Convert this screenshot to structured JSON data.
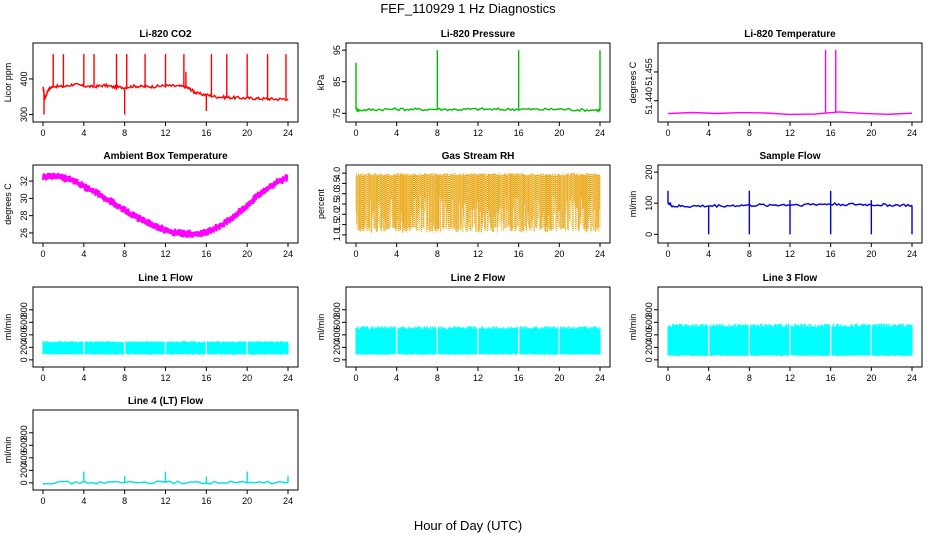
{
  "figure": {
    "title": "FEF_110929  1 Hz Diagnostics",
    "xlabel": "Hour of Day (UTC)"
  },
  "chart_data": [
    {
      "type": "line",
      "title": "Li-820 CO2",
      "ylabel": "Licor ppm",
      "color": "#ff0000",
      "xlim": [
        0,
        24
      ],
      "xticks": [
        0,
        4,
        8,
        12,
        16,
        20,
        24
      ],
      "ylim": [
        290,
        490
      ],
      "yticks": [
        300,
        400
      ],
      "x": [
        0,
        0.2,
        0.5,
        1,
        2,
        3,
        4,
        5,
        6,
        7,
        8,
        9,
        10,
        11,
        12,
        13,
        14,
        14.5,
        15,
        16,
        17,
        18,
        19,
        20,
        21,
        22,
        23,
        24
      ],
      "y": [
        375,
        345,
        370,
        380,
        378,
        385,
        380,
        378,
        382,
        377,
        376,
        380,
        378,
        379,
        381,
        380,
        378,
        370,
        360,
        355,
        350,
        348,
        347,
        346,
        345,
        344,
        343,
        344
      ],
      "spikes": [
        {
          "x": 0.1,
          "y": 300
        },
        {
          "x": 1,
          "y": 470
        },
        {
          "x": 2,
          "y": 470
        },
        {
          "x": 4,
          "y": 470
        },
        {
          "x": 5,
          "y": 470
        },
        {
          "x": 7.2,
          "y": 470
        },
        {
          "x": 8,
          "y": 300
        },
        {
          "x": 8.2,
          "y": 470
        },
        {
          "x": 10,
          "y": 470
        },
        {
          "x": 12,
          "y": 470
        },
        {
          "x": 13.8,
          "y": 470
        },
        {
          "x": 14,
          "y": 420
        },
        {
          "x": 16,
          "y": 310
        },
        {
          "x": 16.5,
          "y": 470
        },
        {
          "x": 18,
          "y": 470
        },
        {
          "x": 20,
          "y": 470
        },
        {
          "x": 22,
          "y": 470
        },
        {
          "x": 23.8,
          "y": 470
        }
      ]
    },
    {
      "type": "line",
      "title": "Li-820 Pressure",
      "ylabel": "kPa",
      "color": "#00c000",
      "xlim": [
        0,
        24
      ],
      "xticks": [
        0,
        4,
        8,
        12,
        16,
        20,
        24
      ],
      "ylim": [
        73.5,
        96
      ],
      "yticks": [
        75,
        85,
        95
      ],
      "x": [
        0,
        0.3,
        2,
        4,
        6,
        8,
        10,
        12,
        14,
        16,
        18,
        20,
        22,
        23.8,
        24
      ],
      "y": [
        76.5,
        76.0,
        76.2,
        76.3,
        76.2,
        76.3,
        76.2,
        76.3,
        76.2,
        76.3,
        76.2,
        76.3,
        76.1,
        76.0,
        76.0
      ],
      "spikes": [
        {
          "x": 0,
          "y": 91
        },
        {
          "x": 8,
          "y": 95
        },
        {
          "x": 16,
          "y": 95
        },
        {
          "x": 24,
          "y": 95
        }
      ]
    },
    {
      "type": "line",
      "title": "Li-820 Temperature",
      "ylabel": "degrees C",
      "color": "#ff00ff",
      "xlim": [
        0,
        24
      ],
      "xticks": [
        0,
        4,
        8,
        12,
        16,
        20,
        24
      ],
      "ylim": [
        51.431,
        51.468
      ],
      "yticks": [
        51.44,
        51.455
      ],
      "ytick_labels": [
        "51.440",
        "51.455"
      ],
      "x": [
        0,
        24
      ],
      "y": [
        51.4335,
        51.4335
      ],
      "spikes": [
        {
          "x": 15.5,
          "y": 51.4665
        },
        {
          "x": 16.5,
          "y": 51.4665
        }
      ]
    },
    {
      "type": "line",
      "title": "Ambient Box Temperature",
      "ylabel": "degrees C",
      "color": "#ff00ff",
      "xlim": [
        0,
        24
      ],
      "xticks": [
        0,
        4,
        8,
        12,
        16,
        20,
        24
      ],
      "ylim": [
        25.3,
        33.4
      ],
      "yticks": [
        26,
        28,
        30,
        32
      ],
      "x": [
        0,
        1,
        2,
        3,
        4,
        5,
        6,
        7,
        8,
        9,
        10,
        11,
        12,
        13,
        14,
        15,
        16,
        17,
        18,
        19,
        20,
        21,
        22,
        23,
        24
      ],
      "y": [
        32.5,
        32.6,
        32.4,
        32.0,
        31.4,
        30.8,
        30.1,
        29.4,
        28.6,
        27.9,
        27.3,
        26.8,
        26.3,
        26.0,
        25.9,
        25.9,
        26.1,
        26.6,
        27.3,
        28.2,
        29.2,
        30.3,
        31.2,
        31.9,
        32.5
      ],
      "band": 0.6
    },
    {
      "type": "scatter",
      "title": "Gas Stream RH",
      "ylabel": "percent",
      "color": "#e8a000",
      "xlim": [
        0,
        24
      ],
      "xticks": [
        0,
        4,
        8,
        12,
        16,
        20,
        24
      ],
      "ylim": [
        0.8,
        4.2
      ],
      "yticks": [
        1.0,
        1.5,
        2.0,
        2.5,
        3.0,
        3.5,
        4.0
      ],
      "ytick_labels": [
        "1.0",
        "1.5",
        "2.0",
        "2.5",
        "3.0",
        "3.5",
        "4.0"
      ],
      "range": [
        1.1,
        4.0
      ]
    },
    {
      "type": "line",
      "title": "Sample Flow",
      "ylabel": "ml/min",
      "color": "#0000e0",
      "xlim": [
        0,
        24
      ],
      "xticks": [
        0,
        4,
        8,
        12,
        16,
        20,
        24
      ],
      "ylim": [
        -15,
        210
      ],
      "yticks": [
        0,
        100,
        200
      ],
      "x": [
        0,
        0.5,
        2,
        4,
        6,
        8,
        10,
        12,
        14,
        16,
        18,
        20,
        22,
        24
      ],
      "y": [
        100,
        90,
        90,
        91,
        92,
        93,
        94,
        95,
        96,
        97,
        96,
        95,
        94,
        93
      ],
      "spikes": [
        {
          "x": 0,
          "y": 140
        },
        {
          "x": 4,
          "y": 0
        },
        {
          "x": 8,
          "y": 140
        },
        {
          "x": 8,
          "y": 0
        },
        {
          "x": 12,
          "y": 110
        },
        {
          "x": 12,
          "y": 0
        },
        {
          "x": 16,
          "y": 140
        },
        {
          "x": 16,
          "y": 0
        },
        {
          "x": 20,
          "y": 110
        },
        {
          "x": 20,
          "y": 0
        },
        {
          "x": 24,
          "y": 0
        }
      ]
    },
    {
      "type": "area",
      "title": "Line 1 Flow",
      "ylabel": "ml/min",
      "color": "#00ffff",
      "xlim": [
        0,
        24
      ],
      "xticks": [
        0,
        4,
        8,
        12,
        16,
        20,
        24
      ],
      "ylim": [
        -50,
        1100
      ],
      "yticks": [
        0,
        200,
        400,
        600,
        800
      ],
      "range": [
        80,
        300
      ]
    },
    {
      "type": "area",
      "title": "Line 2 Flow",
      "ylabel": "ml/min",
      "color": "#00ffff",
      "xlim": [
        0,
        24
      ],
      "xticks": [
        0,
        4,
        8,
        12,
        16,
        20,
        24
      ],
      "ylim": [
        -50,
        1100
      ],
      "yticks": [
        0,
        200,
        400,
        600,
        800
      ],
      "range": [
        80,
        540
      ]
    },
    {
      "type": "area",
      "title": "Line 3 Flow",
      "ylabel": "ml/min",
      "color": "#00ffff",
      "xlim": [
        0,
        24
      ],
      "xticks": [
        0,
        4,
        8,
        12,
        16,
        20,
        24
      ],
      "ylim": [
        -50,
        1100
      ],
      "yticks": [
        0,
        200,
        400,
        600,
        800
      ],
      "range": [
        60,
        580
      ]
    },
    {
      "type": "line",
      "title": "Line 4 (LT) Flow",
      "ylabel": "ml/min",
      "color": "#00e0e0",
      "xlim": [
        0,
        24
      ],
      "xticks": [
        0,
        4,
        8,
        12,
        16,
        20,
        24
      ],
      "ylim": [
        -50,
        1100
      ],
      "yticks": [
        0,
        200,
        400,
        600,
        800
      ],
      "x": [
        0,
        4,
        8,
        12,
        16,
        20,
        24
      ],
      "y": [
        5,
        5,
        5,
        5,
        5,
        5,
        5
      ],
      "spikes": [
        {
          "x": 4,
          "y": 180
        },
        {
          "x": 8,
          "y": 110
        },
        {
          "x": 12,
          "y": 180
        },
        {
          "x": 16,
          "y": 100
        },
        {
          "x": 20,
          "y": 180
        },
        {
          "x": 24,
          "y": 110
        }
      ]
    }
  ]
}
